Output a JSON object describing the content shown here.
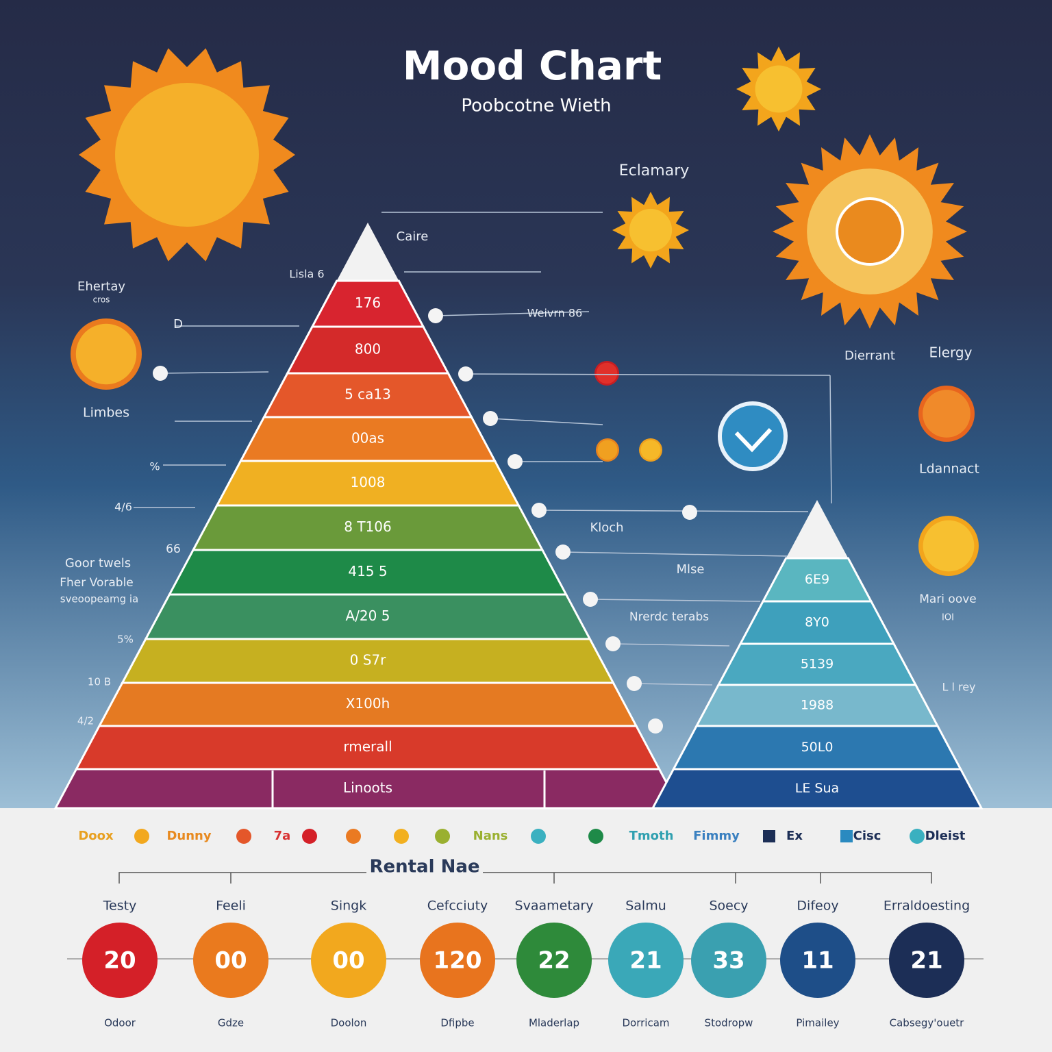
{
  "header": {
    "title": "Mood Chart",
    "subtitle": "Poobcotne Wieth"
  },
  "labels": [
    "Eclamary",
    "Caire",
    "Lisla 6",
    "Ehertay",
    "cros",
    "D",
    "Limbes",
    "Weivrn 86",
    "%",
    "4/6",
    "66",
    "Goor twels",
    "Fher Vorable",
    "sveoopeamg ia",
    "5%",
    "10 B",
    "4/2",
    "Kloch",
    "Mlse",
    "Nrerdc terabs",
    "Dierrant",
    "Elergy",
    "Ldannact",
    "Mari oove",
    "IOI",
    "L l rey"
  ],
  "main_pyramid": {
    "layers": [
      "176",
      "800",
      "5 ca13",
      "00as",
      "1008",
      "8 T106",
      "415 5",
      "A/20 5",
      "0 S7r",
      "X100h",
      "rmerall",
      "Linoots"
    ]
  },
  "small_pyramid": {
    "layers": [
      "6E9",
      "8Y0",
      "5139",
      "1988",
      "50L0",
      "LE Sua"
    ]
  },
  "legend": {
    "items": [
      "Doox",
      "Dunny",
      "7a",
      "Nans",
      "Tmoth",
      "Fimmy",
      "Ex",
      "Cisc",
      "Dleist"
    ]
  },
  "scale": {
    "title": "Rental Nae",
    "items": [
      {
        "label": "Testy",
        "value": "20",
        "caption": "Odoor"
      },
      {
        "label": "Feeli",
        "value": "00",
        "caption": "Gdze"
      },
      {
        "label": "Singk",
        "value": "00",
        "caption": "Doolon"
      },
      {
        "label": "Cefcciuty",
        "value": "120",
        "caption": "Dfipbe"
      },
      {
        "label": "Svaametary",
        "value": "22",
        "caption": "Mladerlap"
      },
      {
        "label": "Salmu",
        "value": "21",
        "caption": "Dorricam"
      },
      {
        "label": "Soecy",
        "value": "33",
        "caption": "Stodropw"
      },
      {
        "label": "Difeoy",
        "value": "11",
        "caption": "Pimailey"
      },
      {
        "label": "Erraldoesting",
        "value": "21",
        "caption": "Cabsegy'ouetr"
      }
    ]
  }
}
